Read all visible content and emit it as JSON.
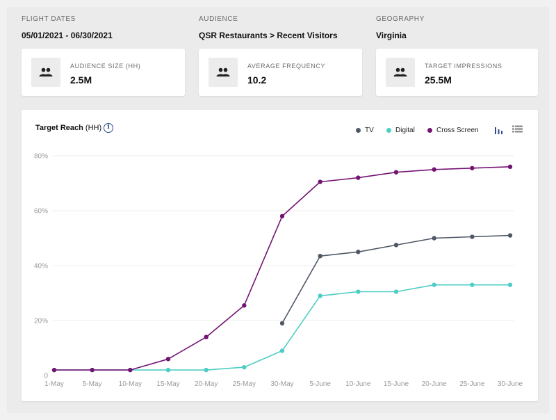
{
  "header": {
    "flight_dates": {
      "label": "FLIGHT DATES",
      "value": "05/01/2021 - 06/30/2021"
    },
    "audience": {
      "label": "AUDIENCE",
      "value": "QSR Restaurants > Recent Visitors"
    },
    "geography": {
      "label": "GEOGRAPHY",
      "value": "Virginia"
    }
  },
  "stats": [
    {
      "label": "AUDIENCE SIZE (HH)",
      "value": "2.5M",
      "icon": "people-icon"
    },
    {
      "label": "AVERAGE FREQUENCY",
      "value": "10.2",
      "icon": "people-icon"
    },
    {
      "label": "TARGET IMPRESSIONS",
      "value": "25.5M",
      "icon": "people-icon"
    }
  ],
  "chart_header": {
    "title_bold": "Target Reach",
    "title_suffix": " (HH)",
    "info_glyph": "i"
  },
  "colors": {
    "tv": "#4f5866",
    "digital": "#4ecdc4",
    "cross_screen": "#731473",
    "grid": "#ececec",
    "tick": "#9a9a9a",
    "icon_blue": "#2a4a8a"
  },
  "chart_data": {
    "type": "line",
    "title": "Target Reach (HH)",
    "x": [
      "1-May",
      "5-May",
      "10-May",
      "15-May",
      "20-May",
      "25-May",
      "30-May",
      "5-June",
      "10-June",
      "15-June",
      "20-June",
      "25-June",
      "30-June"
    ],
    "y_ticks": [
      0,
      20,
      40,
      60,
      80
    ],
    "y_tick_labels": [
      "0",
      "20%",
      "40%",
      "60%",
      "80%"
    ],
    "ylim": [
      0,
      80
    ],
    "grid": true,
    "legend_position": "top-right",
    "series": [
      {
        "name": "TV",
        "color": "#4f5866",
        "values": [
          null,
          null,
          null,
          null,
          null,
          null,
          19,
          43.5,
          45,
          47.5,
          50,
          50.5,
          51
        ]
      },
      {
        "name": "Digital",
        "color": "#4ecdc4",
        "values": [
          2,
          2,
          2,
          2,
          2,
          3,
          9,
          29,
          30.5,
          30.5,
          33,
          33,
          33
        ]
      },
      {
        "name": "Cross Screen",
        "color": "#731473",
        "values": [
          2,
          2,
          2,
          6,
          14,
          25.5,
          58,
          70.5,
          72,
          74,
          75,
          75.5,
          76
        ]
      }
    ]
  }
}
